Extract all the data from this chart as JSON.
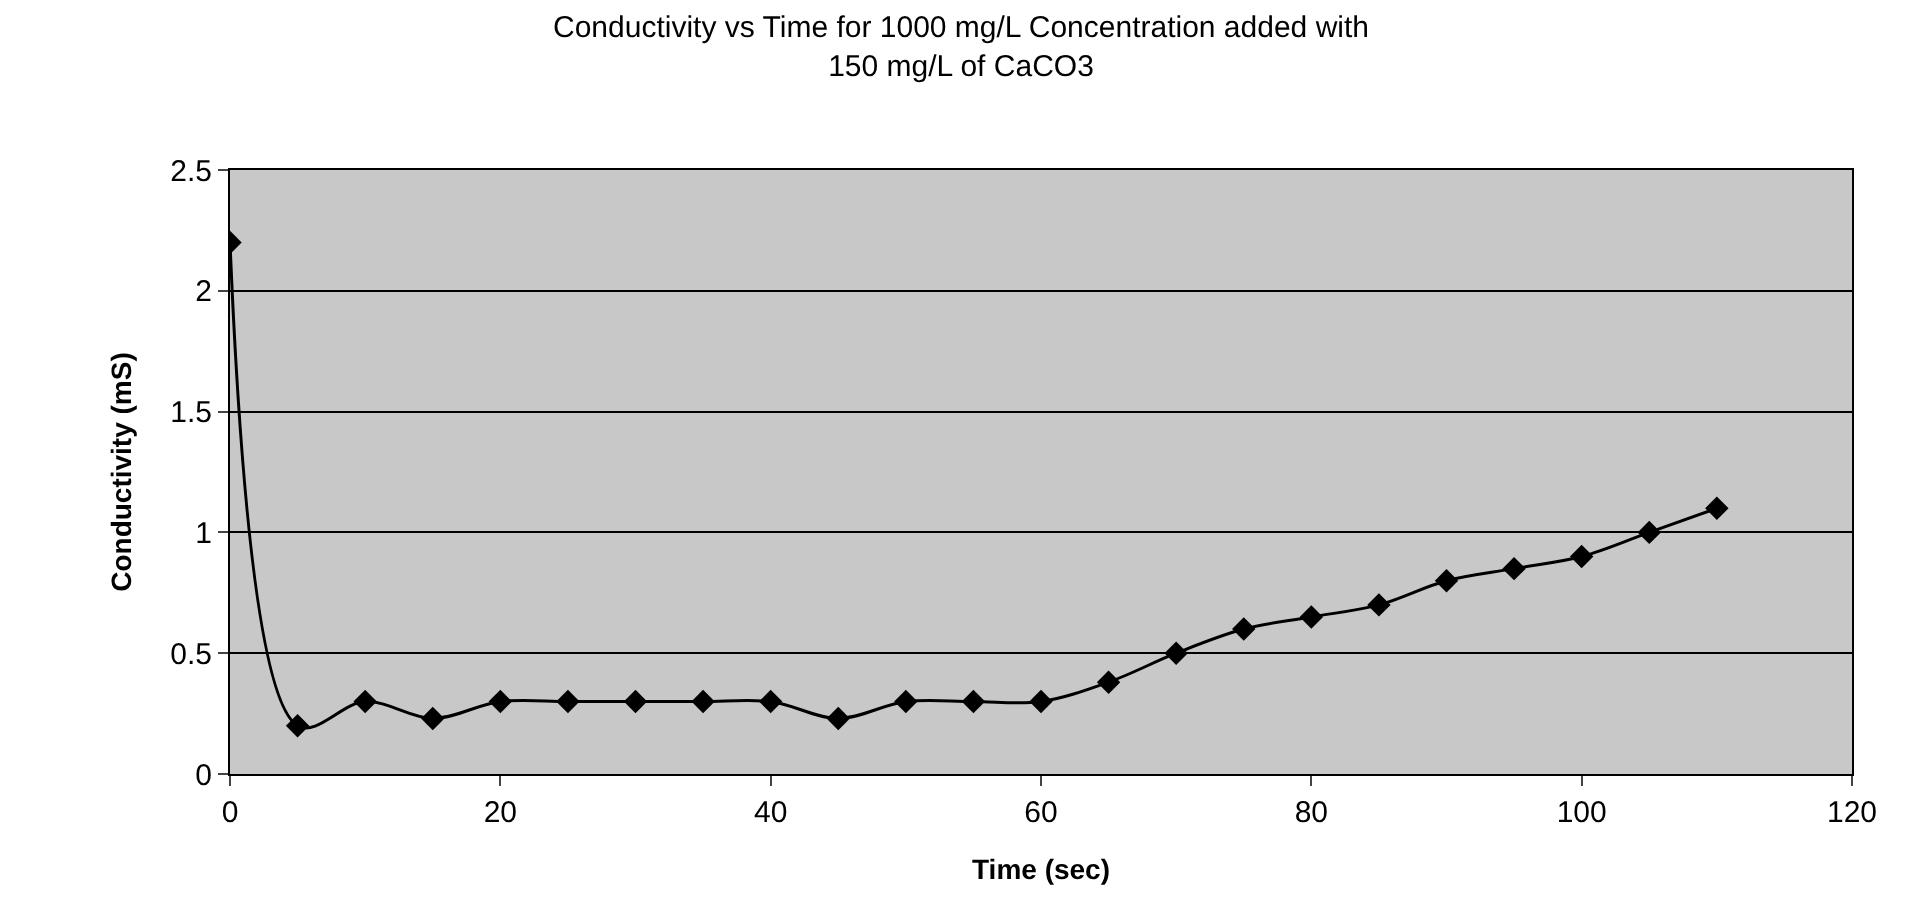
{
  "chart_data": {
    "type": "line",
    "title": "Conductivity vs Time for 1000 mg/L Concentration added with 150 mg/L of CaCO3",
    "xlabel": "Time (sec)",
    "ylabel": "Conductivity (mS)",
    "x": [
      0,
      5,
      10,
      15,
      20,
      25,
      30,
      35,
      40,
      45,
      50,
      55,
      60,
      65,
      70,
      75,
      80,
      85,
      90,
      95,
      100,
      105,
      110
    ],
    "series": [
      {
        "color": "#000000",
        "values": [
          2.2,
          0.2,
          0.3,
          0.23,
          0.3,
          0.3,
          0.3,
          0.3,
          0.3,
          0.23,
          0.3,
          0.3,
          0.3,
          0.38,
          0.5,
          0.6,
          0.65,
          0.7,
          0.8,
          0.85,
          0.9,
          1.0,
          1.1
        ]
      }
    ],
    "xlim": [
      0,
      120
    ],
    "xticks": [
      0,
      20,
      40,
      60,
      80,
      100,
      120
    ],
    "ylim": [
      0,
      2.5
    ],
    "yticks": [
      0,
      0.5,
      1,
      1.5,
      2,
      2.5
    ],
    "grid": "y",
    "legend": false,
    "marker": "diamond",
    "line_style": "solid"
  }
}
